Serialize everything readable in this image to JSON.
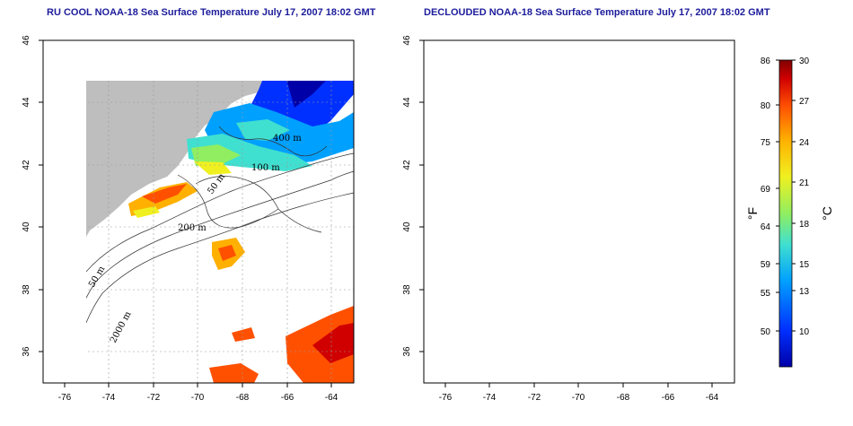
{
  "titles": {
    "left": "RU COOL NOAA-18 Sea Surface Temperature July 17, 2007 18:02 GMT",
    "right": "DECLOUDED NOAA-18 Sea Surface Temperature July 17, 2007 18:02 GMT"
  },
  "axes": {
    "lon_ticks": [
      "-76",
      "-74",
      "-72",
      "-70",
      "-68",
      "-66",
      "-64"
    ],
    "lat_ticks": [
      "46",
      "44",
      "42",
      "40",
      "38",
      "36"
    ],
    "lon_range": [
      -77,
      -63
    ],
    "lat_range": [
      35,
      46
    ]
  },
  "contour_labels": [
    "400 m",
    "100 m",
    "50 m",
    "200 m",
    "50 m",
    "2000 m"
  ],
  "colorbar": {
    "fahrenheit_ticks": [
      "86",
      "80",
      "75",
      "69",
      "64",
      "59",
      "55",
      "50"
    ],
    "celsius_ticks": [
      "30",
      "27",
      "24",
      "21",
      "18",
      "15",
      "13",
      "10"
    ],
    "unit_f": "°F",
    "unit_c": "°C",
    "colors": [
      "#0000a8",
      "#0030ff",
      "#00a0ff",
      "#40e0d0",
      "#90ee60",
      "#f0f020",
      "#ffb000",
      "#ff5000",
      "#d00000",
      "#800000"
    ]
  },
  "colors": {
    "land": "#bebebe",
    "ocean": "#ffffff",
    "title": "#1c1c9c"
  }
}
